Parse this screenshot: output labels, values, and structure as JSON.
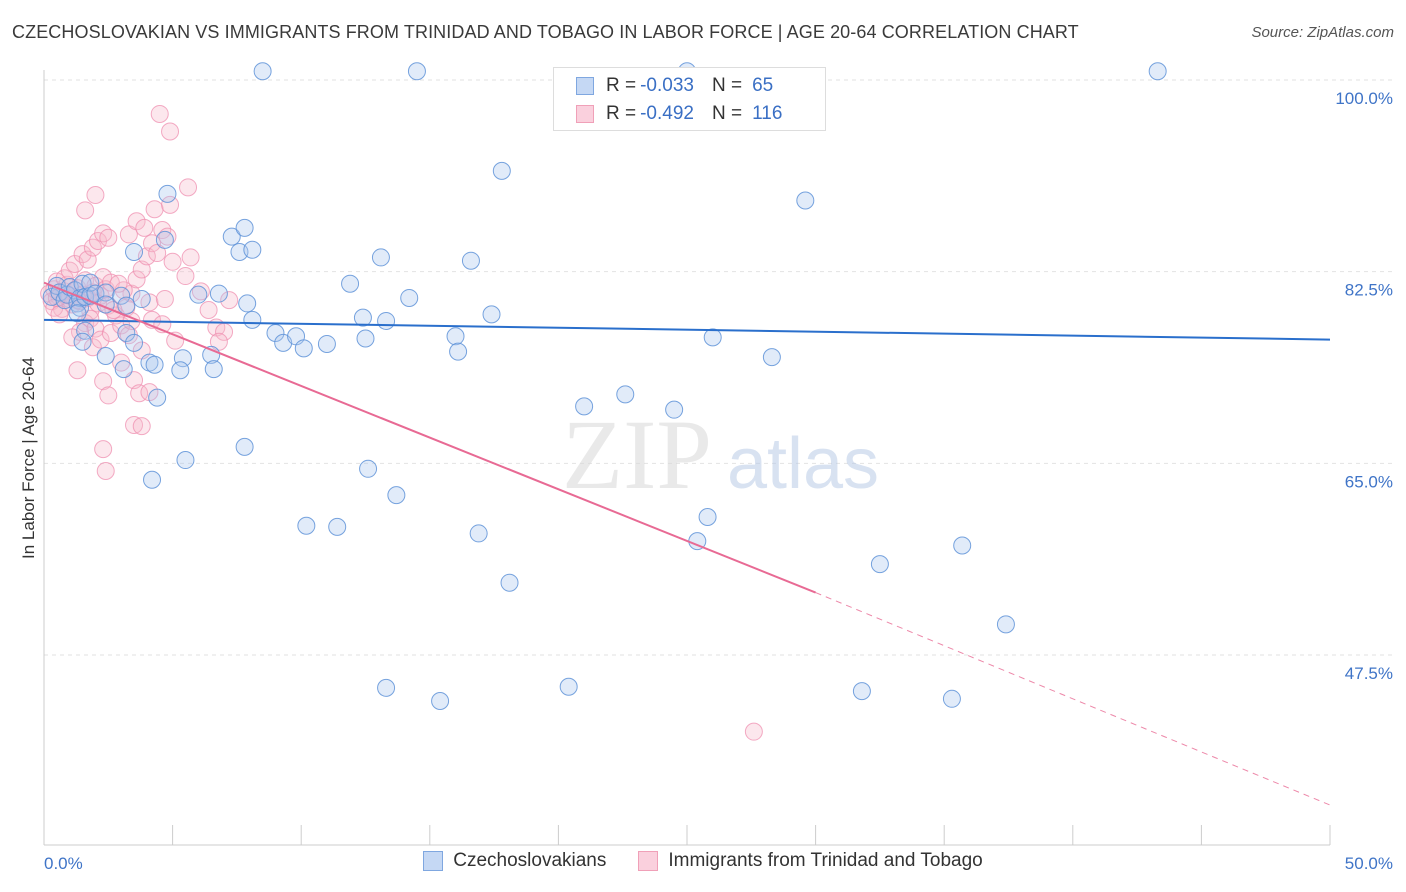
{
  "title": "CZECHOSLOVAKIAN VS IMMIGRANTS FROM TRINIDAD AND TOBAGO IN LABOR FORCE | AGE 20-64 CORRELATION CHART",
  "source": "Source: ZipAtlas.com",
  "watermark": {
    "zip": "ZIP",
    "atlas": "atlas"
  },
  "legend_top": [
    {
      "r_label": "R =",
      "r_value": "-0.033",
      "n_label": "N =",
      "n_value": "65",
      "color": "#7fa7e0"
    },
    {
      "r_label": "R =",
      "r_value": "-0.492",
      "n_label": "N =",
      "n_value": "116",
      "color": "#f0a0b8"
    }
  ],
  "chart_data": {
    "type": "scatter",
    "ylabel": "In Labor Force | Age 20-64",
    "xlim": [
      0,
      50
    ],
    "ylim": [
      30.5,
      101.5
    ],
    "x_tick_labels": [
      "0.0%",
      "50.0%"
    ],
    "y_ticks": [
      47.5,
      65.0,
      82.5,
      100.0
    ],
    "y_tick_labels": [
      "47.5%",
      "65.0%",
      "82.5%",
      "100.0%"
    ],
    "grid": "horizontal-dashed",
    "legend_position": "bottom",
    "series": [
      {
        "name": "Czechoslovakians",
        "color": "#6a9ee0",
        "trend_line_color": "#2a6fcc",
        "trend": {
          "x0": 0,
          "y0": 78.1,
          "x1": 50,
          "y1": 76.3
        },
        "points": [
          [
            0.3,
            80.2
          ],
          [
            0.5,
            81.2
          ],
          [
            0.6,
            80.6
          ],
          [
            0.8,
            79.9
          ],
          [
            0.9,
            80.4
          ],
          [
            1.0,
            81.1
          ],
          [
            1.2,
            80.8
          ],
          [
            1.3,
            79.6
          ],
          [
            1.4,
            80.1
          ],
          [
            1.5,
            81.4
          ],
          [
            1.4,
            79.2
          ],
          [
            1.3,
            78.7
          ],
          [
            1.6,
            80.2
          ],
          [
            1.8,
            80.3
          ],
          [
            1.8,
            81.5
          ],
          [
            2.0,
            80.5
          ],
          [
            2.4,
            80.6
          ],
          [
            1.6,
            77.1
          ],
          [
            1.5,
            76.1
          ],
          [
            2.4,
            74.8
          ],
          [
            2.4,
            79.5
          ],
          [
            3.0,
            80.3
          ],
          [
            3.2,
            79.4
          ],
          [
            3.1,
            73.6
          ],
          [
            3.2,
            76.9
          ],
          [
            3.5,
            76.0
          ],
          [
            3.5,
            84.3
          ],
          [
            3.8,
            80.0
          ],
          [
            4.1,
            74.2
          ],
          [
            4.4,
            71.0
          ],
          [
            4.3,
            74.0
          ],
          [
            4.7,
            85.4
          ],
          [
            4.8,
            89.6
          ],
          [
            5.4,
            74.6
          ],
          [
            5.3,
            73.5
          ],
          [
            6.0,
            80.4
          ],
          [
            6.5,
            74.9
          ],
          [
            6.8,
            80.5
          ],
          [
            6.6,
            73.6
          ],
          [
            7.3,
            85.7
          ],
          [
            7.6,
            84.3
          ],
          [
            7.8,
            86.5
          ],
          [
            7.9,
            79.6
          ],
          [
            8.1,
            78.1
          ],
          [
            8.1,
            84.5
          ],
          [
            9.0,
            76.9
          ],
          [
            9.3,
            76.0
          ],
          [
            9.8,
            76.6
          ],
          [
            10.1,
            75.5
          ],
          [
            11.0,
            75.9
          ],
          [
            11.9,
            81.4
          ],
          [
            12.4,
            78.3
          ],
          [
            12.5,
            76.4
          ],
          [
            13.1,
            83.8
          ],
          [
            13.3,
            78.0
          ],
          [
            14.2,
            80.1
          ],
          [
            12.6,
            64.5
          ],
          [
            13.7,
            62.1
          ],
          [
            16.0,
            76.6
          ],
          [
            16.1,
            75.2
          ],
          [
            16.6,
            83.5
          ],
          [
            17.4,
            78.6
          ],
          [
            17.8,
            91.7
          ],
          [
            21.0,
            70.2
          ],
          [
            24.5,
            69.9
          ],
          [
            25.4,
            57.9
          ],
          [
            28.3,
            74.7
          ],
          [
            29.6,
            89.0
          ],
          [
            8.5,
            100.8
          ],
          [
            43.3,
            100.8
          ],
          [
            25.0,
            100.8
          ],
          [
            14.5,
            100.8
          ],
          [
            4.2,
            63.5
          ],
          [
            5.5,
            65.3
          ],
          [
            7.8,
            66.5
          ],
          [
            11.4,
            59.2
          ],
          [
            10.2,
            59.3
          ],
          [
            13.3,
            44.5
          ],
          [
            15.4,
            43.3
          ],
          [
            20.4,
            44.6
          ],
          [
            26.0,
            76.5
          ],
          [
            32.5,
            55.8
          ],
          [
            37.4,
            50.3
          ],
          [
            35.3,
            43.5
          ],
          [
            31.8,
            44.2
          ],
          [
            18.1,
            54.1
          ],
          [
            35.7,
            57.5
          ],
          [
            25.8,
            60.1
          ],
          [
            22.6,
            71.3
          ],
          [
            16.9,
            58.6
          ]
        ]
      },
      {
        "name": "Immigrants from Trinidad and Tobago",
        "color": "#f097b4",
        "trend_line_color": "#e86a94",
        "trend": {
          "x0": 0,
          "y0": 81.5,
          "x1": 30,
          "y1": 53.2,
          "dash_x1": 50,
          "dash_y1": 33.8
        },
        "points": [
          [
            0.2,
            80.5
          ],
          [
            0.3,
            79.8
          ],
          [
            0.4,
            80.9
          ],
          [
            0.5,
            81.6
          ],
          [
            0.6,
            80.2
          ],
          [
            0.7,
            79.1
          ],
          [
            0.8,
            80.7
          ],
          [
            0.9,
            81.3
          ],
          [
            1.0,
            80.0
          ],
          [
            1.1,
            79.5
          ],
          [
            1.2,
            80.8
          ],
          [
            1.3,
            81.0
          ],
          [
            1.4,
            79.8
          ],
          [
            1.5,
            80.4
          ],
          [
            1.6,
            81.7
          ],
          [
            1.7,
            80.1
          ],
          [
            1.8,
            78.9
          ],
          [
            1.9,
            80.6
          ],
          [
            2.0,
            81.2
          ],
          [
            2.1,
            79.6
          ],
          [
            2.2,
            80.3
          ],
          [
            2.3,
            82.0
          ],
          [
            2.4,
            80.9
          ],
          [
            2.5,
            79.4
          ],
          [
            2.6,
            81.5
          ],
          [
            0.4,
            79.2
          ],
          [
            0.6,
            78.6
          ],
          [
            0.8,
            81.9
          ],
          [
            1.0,
            82.6
          ],
          [
            1.2,
            83.2
          ],
          [
            1.5,
            84.1
          ],
          [
            1.7,
            83.6
          ],
          [
            1.9,
            84.7
          ],
          [
            2.1,
            85.3
          ],
          [
            2.3,
            86.0
          ],
          [
            2.5,
            85.6
          ],
          [
            1.6,
            77.8
          ],
          [
            1.8,
            78.2
          ],
          [
            2.0,
            77.3
          ],
          [
            1.4,
            77.0
          ],
          [
            1.1,
            76.5
          ],
          [
            1.9,
            75.6
          ],
          [
            2.2,
            76.3
          ],
          [
            2.6,
            76.9
          ],
          [
            2.8,
            78.5
          ],
          [
            3.0,
            77.6
          ],
          [
            3.2,
            79.2
          ],
          [
            3.4,
            80.5
          ],
          [
            3.6,
            81.8
          ],
          [
            3.8,
            82.7
          ],
          [
            4.0,
            83.9
          ],
          [
            4.2,
            85.1
          ],
          [
            4.4,
            84.2
          ],
          [
            4.6,
            86.3
          ],
          [
            4.8,
            85.7
          ],
          [
            5.0,
            83.4
          ],
          [
            3.3,
            85.9
          ],
          [
            3.6,
            87.1
          ],
          [
            3.9,
            86.5
          ],
          [
            4.3,
            88.2
          ],
          [
            4.9,
            88.6
          ],
          [
            2.0,
            89.5
          ],
          [
            1.6,
            88.1
          ],
          [
            5.6,
            90.2
          ],
          [
            4.5,
            96.9
          ],
          [
            4.9,
            95.3
          ],
          [
            3.0,
            74.2
          ],
          [
            3.5,
            72.6
          ],
          [
            3.7,
            71.4
          ],
          [
            4.1,
            71.5
          ],
          [
            2.3,
            72.5
          ],
          [
            2.5,
            71.2
          ],
          [
            1.3,
            73.5
          ],
          [
            3.3,
            76.7
          ],
          [
            3.8,
            75.3
          ],
          [
            4.2,
            78.1
          ],
          [
            4.6,
            77.7
          ],
          [
            5.1,
            76.2
          ],
          [
            6.7,
            77.4
          ],
          [
            7.0,
            77.0
          ],
          [
            6.8,
            76.1
          ],
          [
            6.4,
            79.0
          ],
          [
            6.1,
            80.7
          ],
          [
            5.5,
            82.1
          ],
          [
            5.7,
            83.8
          ],
          [
            7.2,
            79.9
          ],
          [
            3.5,
            68.5
          ],
          [
            3.8,
            68.4
          ],
          [
            2.3,
            66.3
          ],
          [
            2.4,
            64.3
          ],
          [
            27.6,
            40.5
          ],
          [
            1.0,
            80.3
          ],
          [
            0.5,
            80.1
          ],
          [
            2.7,
            79.0
          ],
          [
            3.1,
            80.8
          ],
          [
            2.9,
            81.4
          ],
          [
            4.1,
            79.7
          ],
          [
            4.7,
            80.0
          ],
          [
            3.4,
            78.0
          ],
          [
            1.3,
            79.9
          ]
        ]
      }
    ]
  }
}
